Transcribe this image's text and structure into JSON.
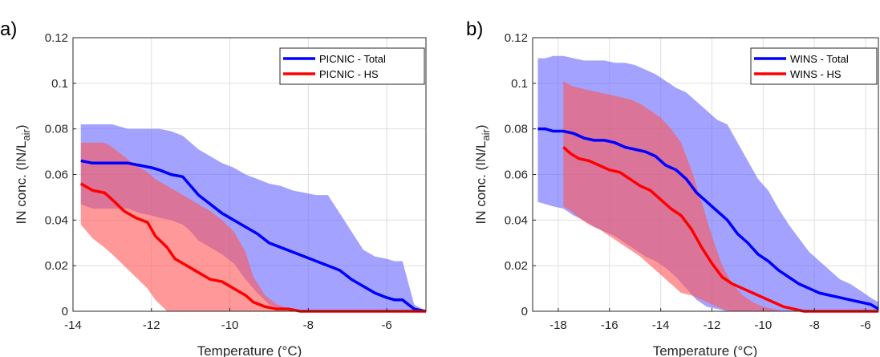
{
  "colors": {
    "total": "#0000ff",
    "hs": "#ff0000",
    "total_band": "#6666ff",
    "hs_band": "#ff5555"
  },
  "chart_data": [
    {
      "type": "line",
      "panel_label": "a)",
      "xlabel": "Temperature (°C)",
      "ylabel": "IN conc. (IN/L",
      "ylabel_sub": "air",
      "ylabel_close": ")",
      "xlim": [
        -14,
        -5
      ],
      "ylim": [
        0,
        0.12
      ],
      "xticks": [
        -14,
        -12,
        -10,
        -8,
        -6
      ],
      "yticks": [
        0,
        0.02,
        0.04,
        0.06,
        0.08,
        0.1,
        0.12
      ],
      "ytick_labels": [
        "0",
        "0.02",
        "0.04",
        "0.06",
        "0.08",
        "0.1",
        "0.12"
      ],
      "grid": true,
      "legend_position": "top-right",
      "series": [
        {
          "name": "PICNIC - Total",
          "color_key": "total",
          "x": [
            -13.8,
            -13.5,
            -13.0,
            -12.6,
            -12.3,
            -12.0,
            -11.8,
            -11.5,
            -11.2,
            -11.0,
            -10.8,
            -10.5,
            -10.2,
            -9.9,
            -9.6,
            -9.3,
            -9.0,
            -8.7,
            -8.4,
            -8.1,
            -7.8,
            -7.5,
            -7.2,
            -6.9,
            -6.6,
            -6.3,
            -6.0,
            -5.8,
            -5.6,
            -5.3,
            -5.0
          ],
          "y": [
            0.066,
            0.065,
            0.065,
            0.065,
            0.064,
            0.063,
            0.062,
            0.06,
            0.059,
            0.055,
            0.051,
            0.047,
            0.043,
            0.04,
            0.037,
            0.034,
            0.03,
            0.028,
            0.026,
            0.024,
            0.022,
            0.02,
            0.018,
            0.014,
            0.011,
            0.008,
            0.006,
            0.005,
            0.005,
            0.001,
            0.0
          ],
          "lower": [
            0.047,
            0.045,
            0.045,
            0.045,
            0.043,
            0.042,
            0.041,
            0.04,
            0.038,
            0.035,
            0.031,
            0.028,
            0.025,
            0.021,
            0.014,
            0.008,
            0.003,
            0.001,
            0.0,
            0.0,
            0.0,
            0.0,
            0.0,
            0.0,
            0.0,
            0.0,
            0.0,
            0.0,
            0.0,
            0.0,
            0.0
          ],
          "upper": [
            0.082,
            0.082,
            0.082,
            0.08,
            0.08,
            0.08,
            0.08,
            0.079,
            0.077,
            0.074,
            0.071,
            0.068,
            0.065,
            0.063,
            0.06,
            0.058,
            0.056,
            0.055,
            0.053,
            0.052,
            0.051,
            0.051,
            0.043,
            0.035,
            0.027,
            0.024,
            0.023,
            0.022,
            0.022,
            0.003,
            0.0
          ]
        },
        {
          "name": "PICNIC - HS",
          "color_key": "hs",
          "x": [
            -13.8,
            -13.5,
            -13.2,
            -13.0,
            -12.7,
            -12.4,
            -12.1,
            -11.9,
            -11.6,
            -11.4,
            -11.1,
            -10.8,
            -10.5,
            -10.2,
            -9.9,
            -9.6,
            -9.4,
            -9.1,
            -8.8,
            -8.5,
            -8.2,
            -7.9,
            -7.0,
            -6.0,
            -5.0
          ],
          "y": [
            0.056,
            0.053,
            0.052,
            0.049,
            0.044,
            0.041,
            0.039,
            0.033,
            0.028,
            0.023,
            0.02,
            0.017,
            0.014,
            0.013,
            0.01,
            0.007,
            0.004,
            0.002,
            0.001,
            0.001,
            0.0,
            0.0,
            0.0,
            0.0,
            0.0
          ],
          "lower": [
            0.038,
            0.032,
            0.028,
            0.025,
            0.02,
            0.015,
            0.01,
            0.005,
            0.0,
            0.0,
            0.0,
            0.0,
            0.0,
            0.0,
            0.0,
            0.0,
            0.0,
            0.0,
            0.0,
            0.0,
            0.0,
            0.0,
            0.0,
            0.0,
            0.0
          ],
          "upper": [
            0.074,
            0.074,
            0.074,
            0.072,
            0.068,
            0.064,
            0.061,
            0.058,
            0.055,
            0.053,
            0.05,
            0.047,
            0.044,
            0.04,
            0.035,
            0.026,
            0.015,
            0.007,
            0.003,
            0.001,
            0.0,
            0.0,
            0.0,
            0.0,
            0.0
          ]
        }
      ]
    },
    {
      "type": "line",
      "panel_label": "b)",
      "xlabel": "Temperature (°C)",
      "ylabel": "IN conc. (IN/L",
      "ylabel_sub": "air",
      "ylabel_close": ")",
      "xlim": [
        -19,
        -5.5
      ],
      "ylim": [
        0,
        0.12
      ],
      "xticks": [
        -18,
        -16,
        -14,
        -12,
        -10,
        -8,
        -6
      ],
      "yticks": [
        0,
        0.02,
        0.04,
        0.06,
        0.08,
        0.1,
        0.12
      ],
      "ytick_labels": [
        "0",
        "0.02",
        "0.04",
        "0.06",
        "0.08",
        "0.1",
        "0.12"
      ],
      "grid": true,
      "legend_position": "top-right",
      "series": [
        {
          "name": "WINS - Total",
          "color_key": "total",
          "x": [
            -18.8,
            -18.5,
            -18.2,
            -17.8,
            -17.4,
            -17.0,
            -16.6,
            -16.2,
            -15.8,
            -15.4,
            -15.0,
            -14.6,
            -14.2,
            -13.8,
            -13.4,
            -13.0,
            -12.6,
            -12.2,
            -11.8,
            -11.4,
            -11.0,
            -10.6,
            -10.2,
            -9.8,
            -9.4,
            -9.0,
            -8.6,
            -8.2,
            -7.8,
            -7.4,
            -7.0,
            -6.6,
            -6.2,
            -5.8,
            -5.5
          ],
          "y": [
            0.08,
            0.08,
            0.079,
            0.079,
            0.078,
            0.076,
            0.075,
            0.075,
            0.074,
            0.072,
            0.071,
            0.07,
            0.068,
            0.064,
            0.062,
            0.058,
            0.052,
            0.048,
            0.044,
            0.04,
            0.034,
            0.03,
            0.025,
            0.022,
            0.018,
            0.015,
            0.012,
            0.01,
            0.008,
            0.007,
            0.006,
            0.005,
            0.004,
            0.003,
            0.001
          ],
          "lower": [
            0.048,
            0.047,
            0.046,
            0.045,
            0.042,
            0.04,
            0.037,
            0.035,
            0.033,
            0.03,
            0.027,
            0.024,
            0.022,
            0.019,
            0.015,
            0.01,
            0.005,
            0.002,
            0.001,
            0.0,
            0.0,
            0.0,
            0.0,
            0.0,
            0.0,
            0.0,
            0.0,
            0.0,
            0.0,
            0.0,
            0.0,
            0.0,
            0.0,
            0.0,
            0.0
          ],
          "upper": [
            0.111,
            0.111,
            0.112,
            0.112,
            0.111,
            0.11,
            0.11,
            0.11,
            0.109,
            0.109,
            0.108,
            0.106,
            0.104,
            0.101,
            0.098,
            0.096,
            0.092,
            0.088,
            0.084,
            0.082,
            0.074,
            0.066,
            0.058,
            0.053,
            0.045,
            0.038,
            0.032,
            0.026,
            0.022,
            0.018,
            0.014,
            0.012,
            0.009,
            0.006,
            0.004
          ]
        },
        {
          "name": "WINS - HS",
          "color_key": "hs",
          "x": [
            -17.8,
            -17.5,
            -17.2,
            -16.8,
            -16.4,
            -16.0,
            -15.6,
            -15.2,
            -14.8,
            -14.4,
            -14.0,
            -13.6,
            -13.2,
            -12.8,
            -12.4,
            -12.0,
            -11.6,
            -11.2,
            -10.8,
            -10.4,
            -10.0,
            -9.6,
            -9.2,
            -8.8,
            -8.4,
            -8.0,
            -7.0,
            -6.0,
            -5.5
          ],
          "y": [
            0.072,
            0.069,
            0.067,
            0.066,
            0.064,
            0.062,
            0.061,
            0.058,
            0.055,
            0.053,
            0.049,
            0.045,
            0.042,
            0.036,
            0.028,
            0.021,
            0.015,
            0.012,
            0.01,
            0.008,
            0.006,
            0.004,
            0.002,
            0.001,
            0.0,
            0.0,
            0.0,
            0.0,
            0.0
          ],
          "lower": [
            0.046,
            0.044,
            0.041,
            0.038,
            0.036,
            0.033,
            0.03,
            0.027,
            0.024,
            0.02,
            0.016,
            0.012,
            0.008,
            0.007,
            0.005,
            0.003,
            0.001,
            0.0,
            0.0,
            0.0,
            0.0,
            0.0,
            0.0,
            0.0,
            0.0,
            0.0,
            0.0,
            0.0,
            0.0
          ],
          "upper": [
            0.101,
            0.099,
            0.098,
            0.097,
            0.096,
            0.095,
            0.094,
            0.093,
            0.091,
            0.088,
            0.085,
            0.08,
            0.074,
            0.062,
            0.048,
            0.033,
            0.02,
            0.012,
            0.007,
            0.004,
            0.002,
            0.001,
            0.0,
            0.0,
            0.0,
            0.0,
            0.0,
            0.0,
            0.0
          ]
        }
      ]
    }
  ]
}
